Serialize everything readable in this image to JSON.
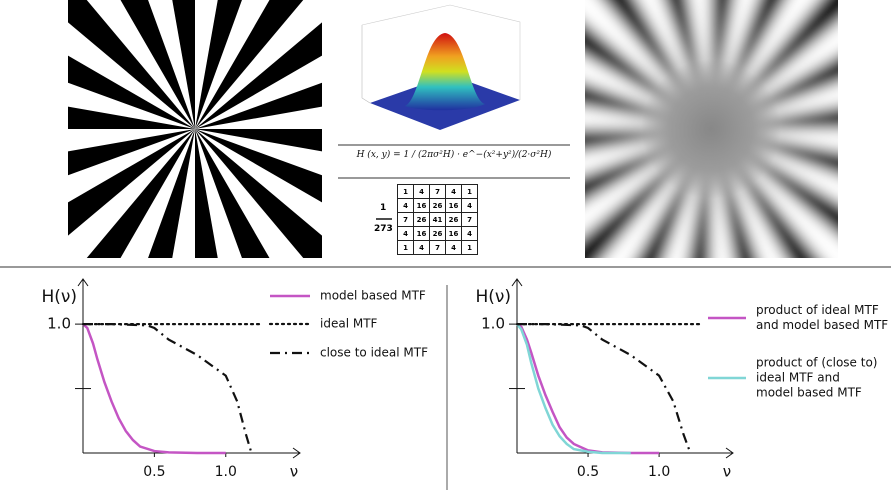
{
  "figure": {
    "formula": "H (x, y) = 1 / (2πσ²H) · e^−(x²+y²)/(2·σ²H)",
    "kernel_numerator": "1",
    "kernel_denominator": "273",
    "kernel": [
      [
        1,
        4,
        7,
        4,
        1
      ],
      [
        4,
        16,
        26,
        16,
        4
      ],
      [
        7,
        26,
        41,
        26,
        7
      ],
      [
        4,
        16,
        26,
        16,
        4
      ],
      [
        1,
        4,
        7,
        4,
        1
      ]
    ]
  },
  "chart_data": [
    {
      "type": "line",
      "ylabel": "H(ν)",
      "xlabel": "ν",
      "legend": "right",
      "xlim": [
        0,
        1.52
      ],
      "ylim": [
        0,
        1.35
      ],
      "xticks": [
        0.5,
        {
          "value": 1,
          "label": "1.0"
        }
      ],
      "yticks": [
        {
          "value": 0.5,
          "label": null
        },
        {
          "value": 1,
          "label": "1.0"
        }
      ],
      "series": [
        {
          "name": "model based MTF",
          "color": "#c455c4",
          "dash": "solid",
          "x": [
            0,
            0.03,
            0.07,
            0.1,
            0.15,
            0.2,
            0.25,
            0.3,
            0.35,
            0.4,
            0.5,
            0.6,
            0.8,
            1.0
          ],
          "values": [
            1,
            0.97,
            0.85,
            0.73,
            0.55,
            0.4,
            0.27,
            0.17,
            0.1,
            0.05,
            0.015,
            0.005,
            0,
            0
          ]
        },
        {
          "name": "ideal MTF",
          "color": "#111111",
          "dash": "dotted",
          "x": [
            0,
            1.25
          ],
          "values": [
            1,
            1
          ]
        },
        {
          "name": "close to ideal MTF",
          "color": "#111111",
          "dash": "dashdot",
          "x": [
            0,
            0.2,
            0.45,
            0.5,
            0.6,
            0.8,
            1.0,
            1.08,
            1.14,
            1.18
          ],
          "values": [
            1,
            1,
            0.99,
            0.97,
            0.88,
            0.76,
            0.6,
            0.4,
            0.15,
            0
          ]
        }
      ]
    },
    {
      "type": "line",
      "ylabel": "H(ν)",
      "xlabel": "ν",
      "legend": "right",
      "xlim": [
        0,
        1.52
      ],
      "ylim": [
        0,
        1.35
      ],
      "xticks": [
        0.5,
        {
          "value": 1,
          "label": "1.0"
        }
      ],
      "yticks": [
        {
          "value": 0.5,
          "label": null
        },
        {
          "value": 1,
          "label": "1.0"
        }
      ],
      "series": [
        {
          "name": "product of ideal MTF\nand model  based MTF",
          "color": "#c455c4",
          "dash": "solid",
          "x": [
            0,
            0.03,
            0.07,
            0.1,
            0.15,
            0.2,
            0.25,
            0.3,
            0.35,
            0.4,
            0.5,
            0.6,
            0.8,
            1.0
          ],
          "values": [
            1,
            0.98,
            0.88,
            0.78,
            0.6,
            0.45,
            0.32,
            0.2,
            0.12,
            0.07,
            0.02,
            0.005,
            0,
            0
          ]
        },
        {
          "name": "product of (close to)\nideal MTF and\nmodel  based MTF",
          "color": "#80d6d6",
          "dash": "solid",
          "x": [
            0,
            0.03,
            0.07,
            0.1,
            0.15,
            0.2,
            0.25,
            0.3,
            0.35,
            0.4,
            0.5,
            0.6,
            0.8
          ],
          "values": [
            1,
            0.96,
            0.84,
            0.7,
            0.5,
            0.35,
            0.22,
            0.13,
            0.07,
            0.03,
            0.01,
            0,
            0
          ]
        },
        {
          "color": "#111111",
          "dash": "dotted",
          "x": [
            0,
            1.29
          ],
          "values": [
            1,
            1
          ]
        },
        {
          "color": "#111111",
          "dash": "dashdot",
          "x": [
            0,
            0.2,
            0.45,
            0.5,
            0.6,
            0.8,
            1.0,
            1.1,
            1.17,
            1.22
          ],
          "values": [
            1,
            1,
            0.99,
            0.97,
            0.88,
            0.76,
            0.6,
            0.4,
            0.15,
            0
          ]
        }
      ]
    }
  ]
}
